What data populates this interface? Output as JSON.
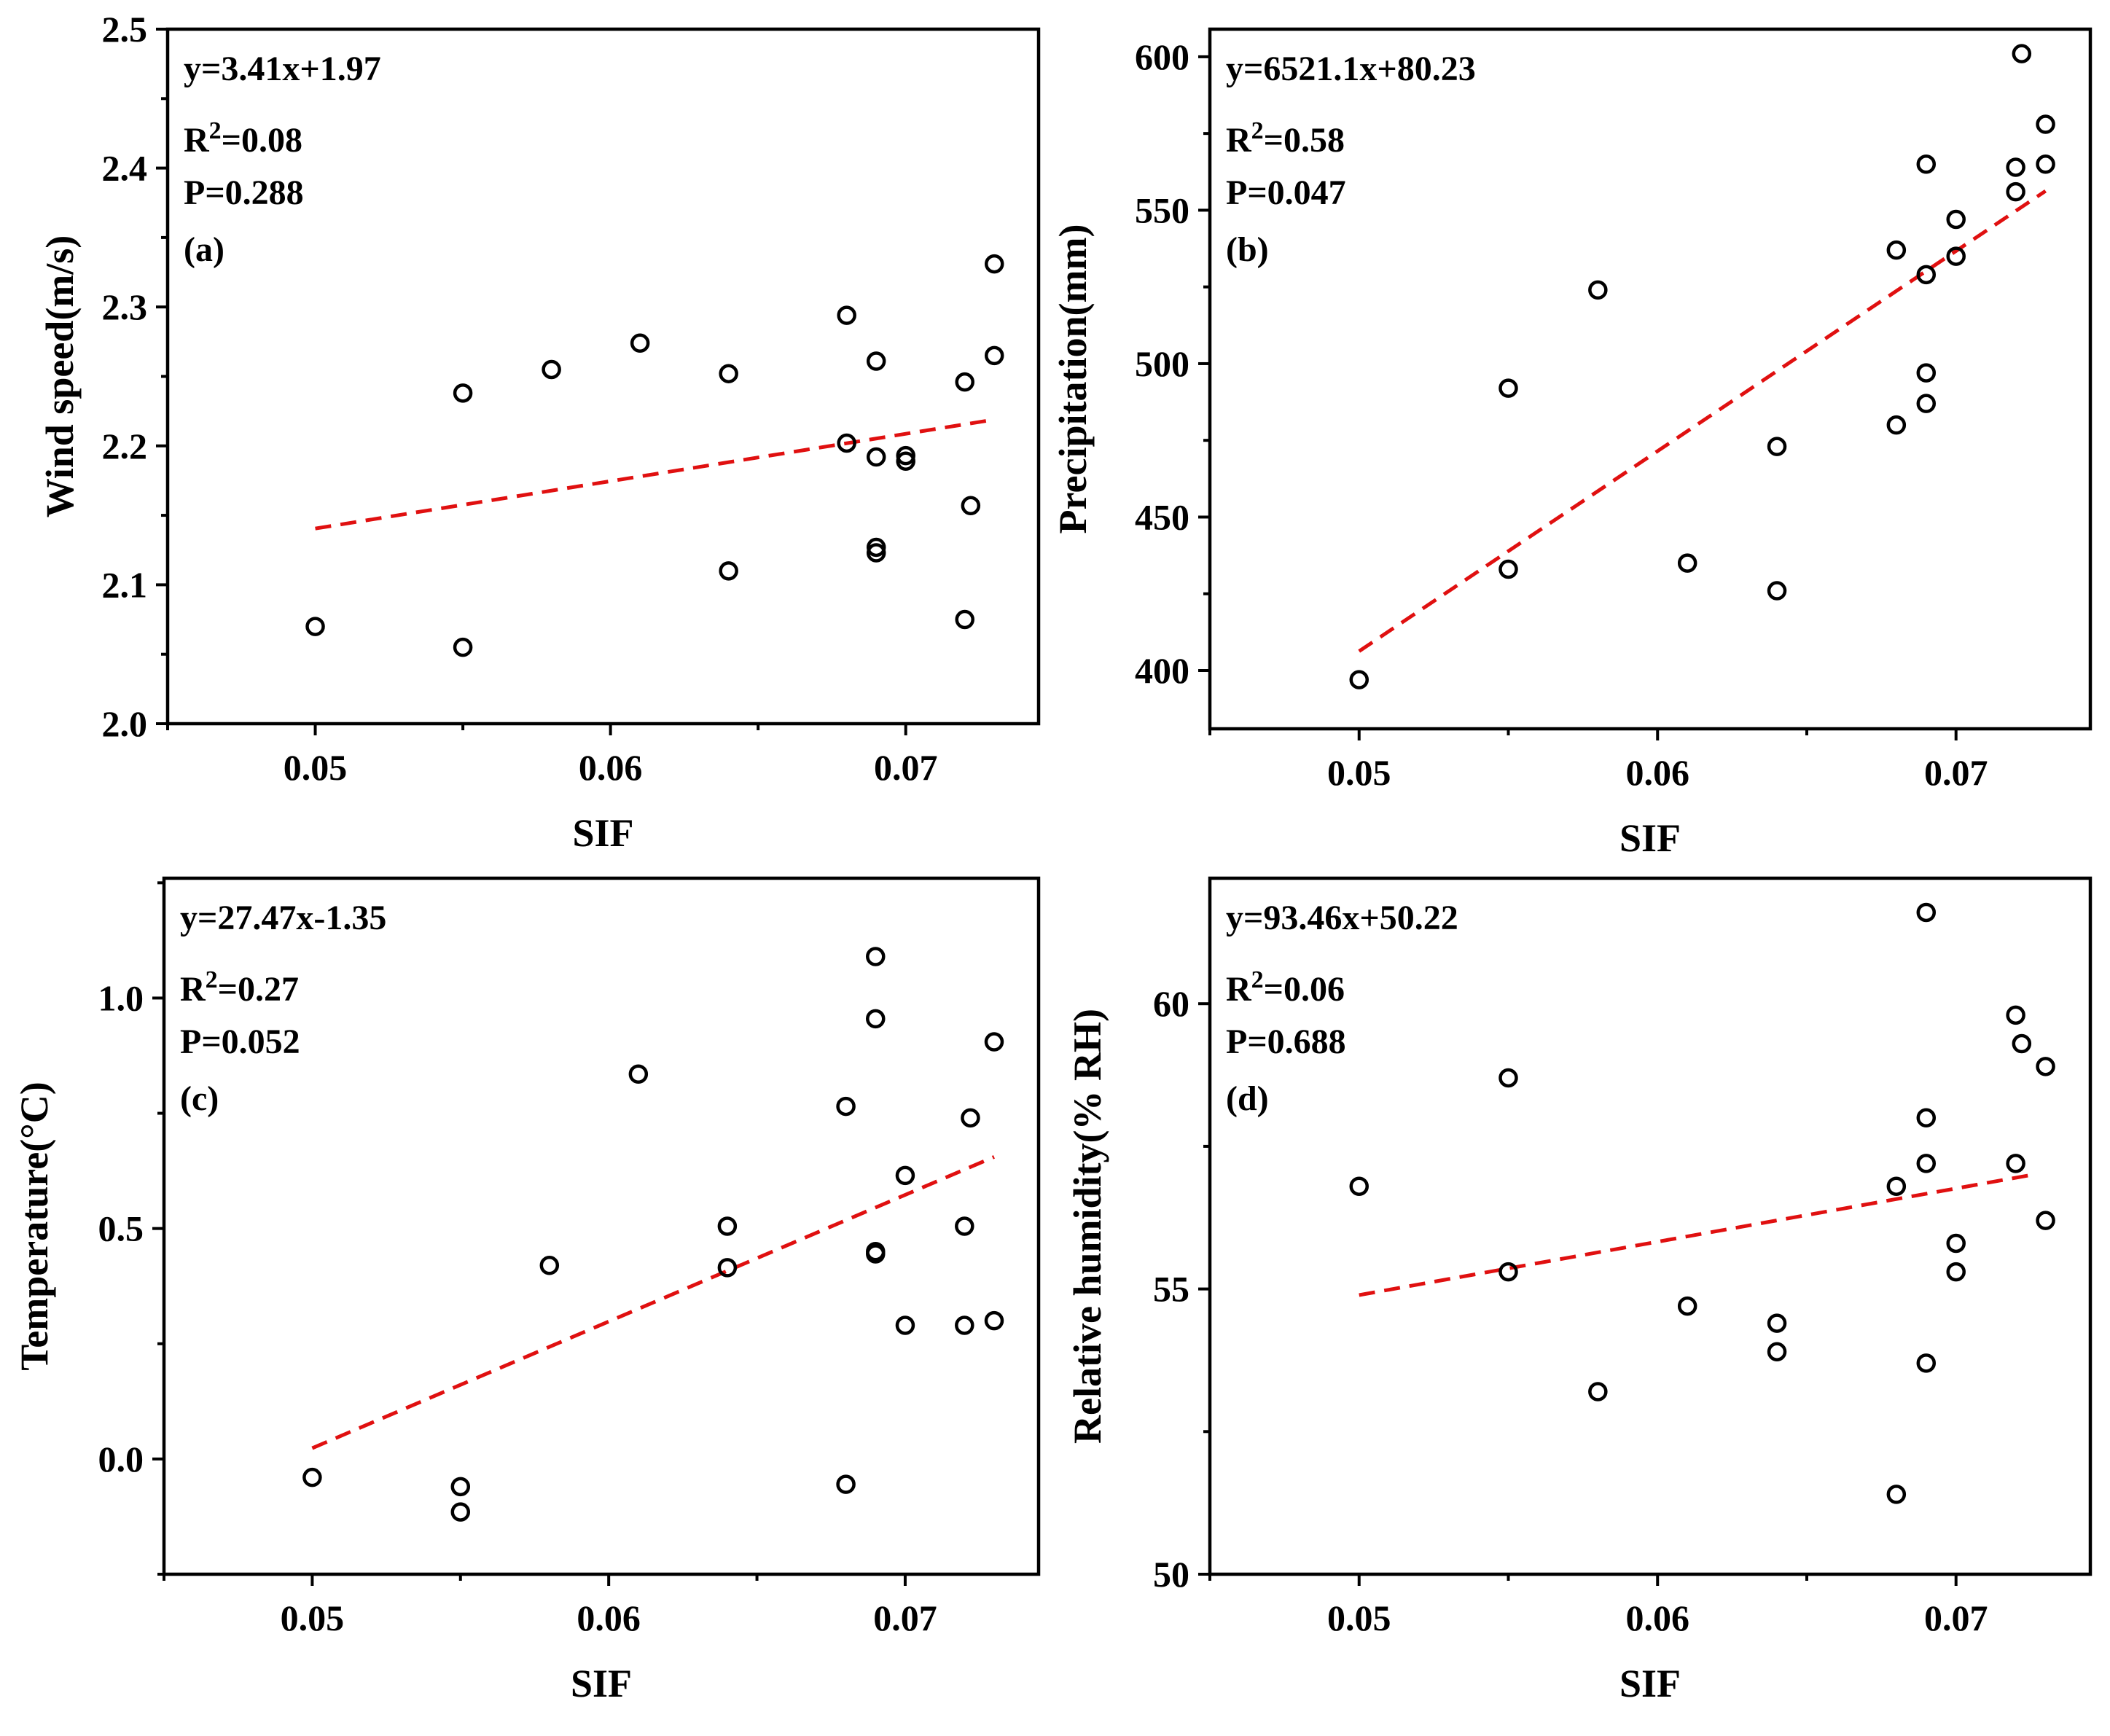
{
  "chart_data": [
    {
      "type": "scatter",
      "panel": "(a)",
      "xlabel": "SIF",
      "ylabel": "Wind speed(m/s)",
      "xlim": [
        0.045,
        0.0745
      ],
      "ylim": [
        2.0,
        2.5
      ],
      "xticks": [
        0.05,
        0.06,
        0.07
      ],
      "xtick_labels": [
        "0.05",
        "0.06",
        "0.07"
      ],
      "yticks": [
        2.0,
        2.1,
        2.2,
        2.3,
        2.4,
        2.5
      ],
      "ytick_labels": [
        "2.0",
        "2.1",
        "2.2",
        "2.3",
        "2.4",
        "2.5"
      ],
      "equation": "y=3.41x+1.97",
      "r2_prefix": "R",
      "r2_sup": "2",
      "r2_value": "=0.08",
      "p_text": "P=0.288",
      "fit": {
        "slope": 3.41,
        "intercept": 1.97,
        "x_range": [
          0.05,
          0.073
        ]
      },
      "points": {
        "x": [
          0.05,
          0.055,
          0.055,
          0.058,
          0.061,
          0.064,
          0.064,
          0.068,
          0.068,
          0.069,
          0.069,
          0.069,
          0.069,
          0.07,
          0.07,
          0.072,
          0.072,
          0.0722,
          0.073,
          0.073
        ],
        "y": [
          2.07,
          2.055,
          2.238,
          2.255,
          2.274,
          2.252,
          2.11,
          2.294,
          2.202,
          2.261,
          2.192,
          2.127,
          2.123,
          2.193,
          2.189,
          2.246,
          2.075,
          2.157,
          2.265,
          2.331
        ]
      }
    },
    {
      "type": "scatter",
      "panel": "(b)",
      "xlabel": "SIF",
      "ylabel": "Precipitation(mm)",
      "xlim": [
        0.045,
        0.0745
      ],
      "ylim": [
        381,
        609
      ],
      "xticks": [
        0.05,
        0.06,
        0.07
      ],
      "xtick_labels": [
        "0.05",
        "0.06",
        "0.07"
      ],
      "yticks": [
        400,
        450,
        500,
        550,
        600
      ],
      "ytick_labels": [
        "400",
        "450",
        "500",
        "550",
        "600"
      ],
      "equation": "y=6521.1x+80.23",
      "r2_prefix": "R",
      "r2_sup": "2",
      "r2_value": "=0.58",
      "p_text": "P=0.047",
      "fit": {
        "slope": 6521.1,
        "intercept": 80.23,
        "x_range": [
          0.05,
          0.073
        ]
      },
      "points": {
        "x": [
          0.05,
          0.055,
          0.055,
          0.058,
          0.061,
          0.064,
          0.064,
          0.068,
          0.068,
          0.069,
          0.069,
          0.069,
          0.069,
          0.07,
          0.07,
          0.072,
          0.072,
          0.0722,
          0.073,
          0.073
        ],
        "y": [
          397,
          433,
          492,
          524,
          435,
          473,
          426,
          537,
          480,
          565,
          529,
          497,
          487,
          547,
          535,
          564,
          556,
          601,
          578,
          565
        ]
      }
    },
    {
      "type": "scatter",
      "panel": "(c)",
      "xlabel": "SIF",
      "ylabel": "Temperature(°C)",
      "xlim": [
        0.045,
        0.0745
      ],
      "ylim": [
        -0.25,
        1.26
      ],
      "xticks": [
        0.05,
        0.06,
        0.07
      ],
      "xtick_labels": [
        "0.05",
        "0.06",
        "0.07"
      ],
      "yticks": [
        0.0,
        0.5,
        1.0
      ],
      "ytick_labels": [
        "0.0",
        "0.5",
        "1.0"
      ],
      "equation": "y=27.47x-1.35",
      "r2_prefix": "R",
      "r2_sup": "2",
      "r2_value": "=0.27",
      "p_text": "P=0.052",
      "fit": {
        "slope": 27.47,
        "intercept": -1.35,
        "x_range": [
          0.05,
          0.073
        ]
      },
      "points": {
        "x": [
          0.05,
          0.055,
          0.055,
          0.058,
          0.061,
          0.064,
          0.064,
          0.068,
          0.068,
          0.069,
          0.069,
          0.069,
          0.069,
          0.07,
          0.07,
          0.072,
          0.072,
          0.0722,
          0.073,
          0.073
        ],
        "y": [
          -0.04,
          -0.06,
          -0.115,
          0.42,
          0.835,
          0.505,
          0.415,
          0.765,
          -0.055,
          1.09,
          0.955,
          0.45,
          0.445,
          0.615,
          0.29,
          0.505,
          0.29,
          0.74,
          0.905,
          0.3
        ]
      }
    },
    {
      "type": "scatter",
      "panel": "(d)",
      "xlabel": "SIF",
      "ylabel": "Relative humidity(% RH)",
      "xlim": [
        0.045,
        0.0745
      ],
      "ylim": [
        50,
        62.2
      ],
      "xticks": [
        0.05,
        0.06,
        0.07
      ],
      "xtick_labels": [
        "0.05",
        "0.06",
        "0.07"
      ],
      "yticks": [
        50,
        55,
        60
      ],
      "ytick_labels": [
        "50",
        "55",
        "60"
      ],
      "equation": "y=93.46x+50.22",
      "r2_prefix": "R",
      "r2_sup": "2",
      "r2_value": "=0.06",
      "p_text": "P=0.688",
      "fit": {
        "slope": 93.46,
        "intercept": 50.22,
        "x_range": [
          0.05,
          0.0725
        ]
      },
      "points": {
        "x": [
          0.05,
          0.055,
          0.055,
          0.058,
          0.061,
          0.064,
          0.064,
          0.068,
          0.068,
          0.069,
          0.069,
          0.069,
          0.069,
          0.07,
          0.07,
          0.072,
          0.072,
          0.0722,
          0.073,
          0.073
        ],
        "y": [
          56.8,
          58.7,
          55.3,
          53.2,
          54.7,
          54.4,
          53.9,
          56.8,
          51.4,
          61.6,
          58.0,
          57.2,
          53.7,
          55.8,
          55.3,
          59.8,
          57.2,
          59.3,
          58.9,
          56.2
        ]
      }
    }
  ]
}
